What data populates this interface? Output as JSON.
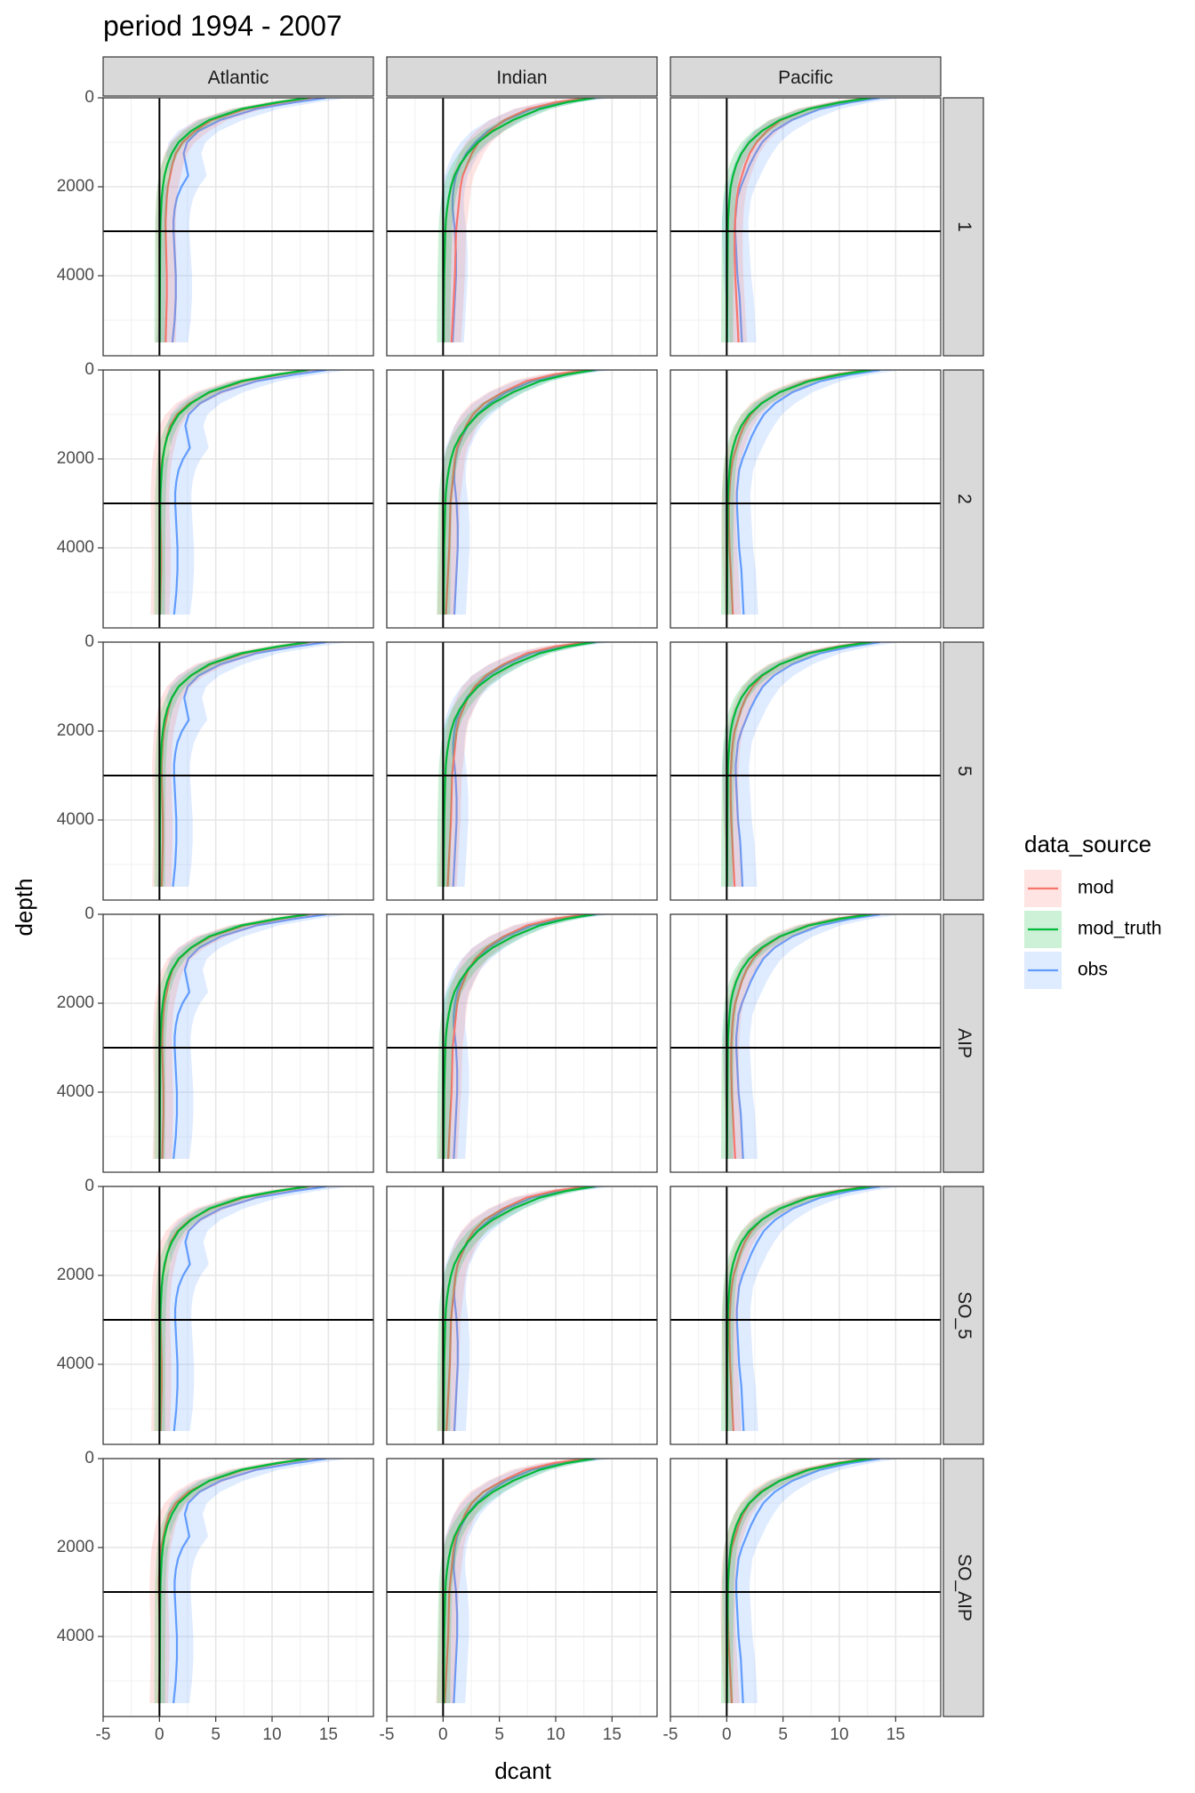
{
  "chart_data": {
    "type": "line",
    "title": "period 1994 - 2007",
    "xlabel": "dcant",
    "ylabel": "depth",
    "xlim": [
      -5,
      19
    ],
    "ylim": [
      0,
      5800
    ],
    "y_reversed": true,
    "x_ticks": [
      -5,
      0,
      5,
      10,
      15
    ],
    "y_ticks": [
      0,
      2000,
      4000
    ],
    "x_tick_labels": [
      "-5",
      "0",
      "5",
      "10",
      "15"
    ],
    "y_tick_labels": [
      "0",
      "2000",
      "4000"
    ],
    "reference_lines": {
      "x": 0,
      "y": 3000
    },
    "grid": true,
    "columns": [
      "Atlantic",
      "Indian",
      "Pacific"
    ],
    "rows": [
      "1",
      "2",
      "5",
      "AIP",
      "SO_5",
      "SO_AIP"
    ],
    "legend": {
      "title": "data_source",
      "position": "right",
      "entries": [
        "mod",
        "mod_truth",
        "obs"
      ]
    },
    "colors": {
      "mod": "#F8766D",
      "mod_truth": "#00BA38",
      "obs": "#619CFF"
    },
    "depth_levels": [
      0,
      100,
      250,
      500,
      750,
      1000,
      1250,
      1500,
      1750,
      2000,
      2250,
      2500,
      2750,
      3000,
      3500,
      4000,
      4500,
      5000,
      5500
    ],
    "series": {
      "Atlantic": {
        "mod_truth": {
          "values": [
            13.2,
            10.5,
            7.3,
            4.4,
            2.8,
            1.7,
            1.1,
            0.7,
            0.45,
            0.3,
            0.2,
            0.15,
            0.1,
            0.08,
            0.06,
            0.05,
            0.04,
            0.03,
            0.02
          ],
          "spread": 0.8
        },
        "obs": {
          "values": [
            14.8,
            12.0,
            8.6,
            5.4,
            3.5,
            2.5,
            2.2,
            2.4,
            2.6,
            2.0,
            1.6,
            1.4,
            1.3,
            1.3,
            1.4,
            1.5,
            1.5,
            1.4,
            1.2
          ],
          "spread": 2.0
        },
        "mod": {
          "values": [
            13.4,
            10.8,
            7.6,
            4.6,
            3.0,
            1.9,
            1.3,
            1.0,
            0.8,
            0.6,
            0.5,
            0.45,
            0.4,
            0.4,
            0.45,
            0.5,
            0.5,
            0.45,
            0.4
          ],
          "spread": 1.4
        }
      },
      "Indian": {
        "mod_truth": {
          "values": [
            13.4,
            11.0,
            8.6,
            6.2,
            4.4,
            3.1,
            2.2,
            1.5,
            1.0,
            0.7,
            0.5,
            0.35,
            0.25,
            0.2,
            0.15,
            0.1,
            0.08,
            0.06,
            0.05
          ],
          "spread": 1.0
        },
        "obs": {
          "values": [
            13.6,
            10.6,
            7.9,
            5.6,
            4.0,
            2.9,
            2.1,
            1.6,
            1.2,
            1.0,
            0.9,
            0.9,
            1.0,
            1.1,
            1.2,
            1.2,
            1.1,
            1.0,
            0.9
          ],
          "spread": 1.5
        },
        "mod": {
          "values": [
            12.8,
            10.0,
            7.5,
            5.4,
            4.0,
            3.0,
            2.4,
            2.0,
            1.6,
            1.4,
            1.3,
            1.2,
            1.1,
            1.0,
            0.95,
            0.9,
            0.8,
            0.7,
            0.6
          ],
          "spread": 1.3
        }
      },
      "Pacific": {
        "mod_truth": {
          "values": [
            12.8,
            10.1,
            7.3,
            4.7,
            3.1,
            2.0,
            1.3,
            0.85,
            0.55,
            0.35,
            0.25,
            0.18,
            0.12,
            0.1,
            0.08,
            0.06,
            0.05,
            0.04,
            0.03
          ],
          "spread": 0.9
        },
        "obs": {
          "values": [
            13.6,
            11.0,
            8.3,
            5.8,
            4.2,
            3.2,
            2.6,
            2.1,
            1.7,
            1.3,
            1.0,
            0.9,
            0.8,
            0.8,
            0.9,
            1.0,
            1.2,
            1.3,
            1.4
          ],
          "spread": 1.8
        },
        "mod": {
          "values": [
            12.6,
            9.9,
            7.2,
            4.8,
            3.4,
            2.5,
            1.9,
            1.5,
            1.2,
            0.9,
            0.75,
            0.65,
            0.6,
            0.55,
            0.55,
            0.6,
            0.7,
            0.8,
            0.9
          ],
          "spread": 1.1
        }
      }
    },
    "row_adjust": {
      "1": {
        "mod": 0.15,
        "obs": -0.05
      },
      "2": {
        "mod": -0.35,
        "obs": 0.1
      },
      "5": {
        "mod": -0.2,
        "obs": 0.0
      },
      "AIP": {
        "mod": -0.15,
        "obs": 0.05
      },
      "SO_5": {
        "mod": -0.3,
        "obs": 0.1
      },
      "SO_AIP": {
        "mod": -0.45,
        "obs": 0.05
      }
    }
  }
}
